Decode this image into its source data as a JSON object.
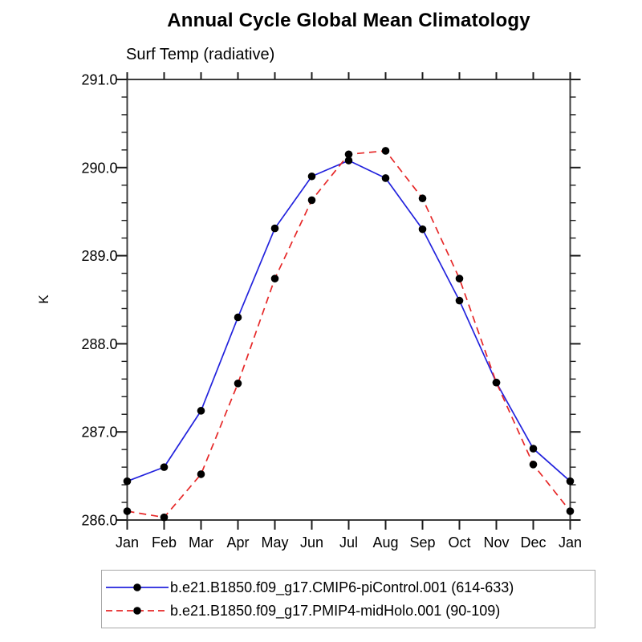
{
  "page": {
    "background": "#ffffff"
  },
  "chart_data": {
    "type": "line",
    "title": "Annual Cycle Global Mean Climatology",
    "subtitle": "Surf Temp (radiative)",
    "ylabel": "K",
    "x_categories": [
      "Jan",
      "Feb",
      "Mar",
      "Apr",
      "May",
      "Jun",
      "Jul",
      "Aug",
      "Sep",
      "Oct",
      "Nov",
      "Dec",
      "Jan"
    ],
    "ylim": [
      286.0,
      291.0
    ],
    "ytick_major_interval": 1.0,
    "ytick_minor_interval": 0.2,
    "ytick_labels": [
      "286.0",
      "287.0",
      "288.0",
      "289.0",
      "290.0",
      "291.0"
    ],
    "grid": false,
    "legend_position": "bottom",
    "frame_color": "#3c3c3c",
    "tick_color": "#1c1c1c",
    "series": [
      {
        "name": "b.e21.B1850.f09_g17.CMIP6-piControl.001 (614-633)",
        "color": "#2222dd",
        "line_style": "solid",
        "marker": "filled-circle",
        "marker_color": "#000000",
        "values": [
          286.44,
          286.6,
          287.24,
          288.3,
          289.31,
          289.9,
          290.08,
          289.88,
          289.3,
          288.49,
          287.56,
          286.81,
          286.44
        ]
      },
      {
        "name": "b.e21.B1850.f09_g17.PMIP4-midHolo.001 (90-109)",
        "color": "#e62828",
        "line_style": "dashed",
        "marker": "filled-circle",
        "marker_color": "#000000",
        "values": [
          286.1,
          286.03,
          286.52,
          287.55,
          288.74,
          289.63,
          290.15,
          290.19,
          289.65,
          288.74,
          287.56,
          286.63,
          286.1
        ]
      }
    ]
  }
}
